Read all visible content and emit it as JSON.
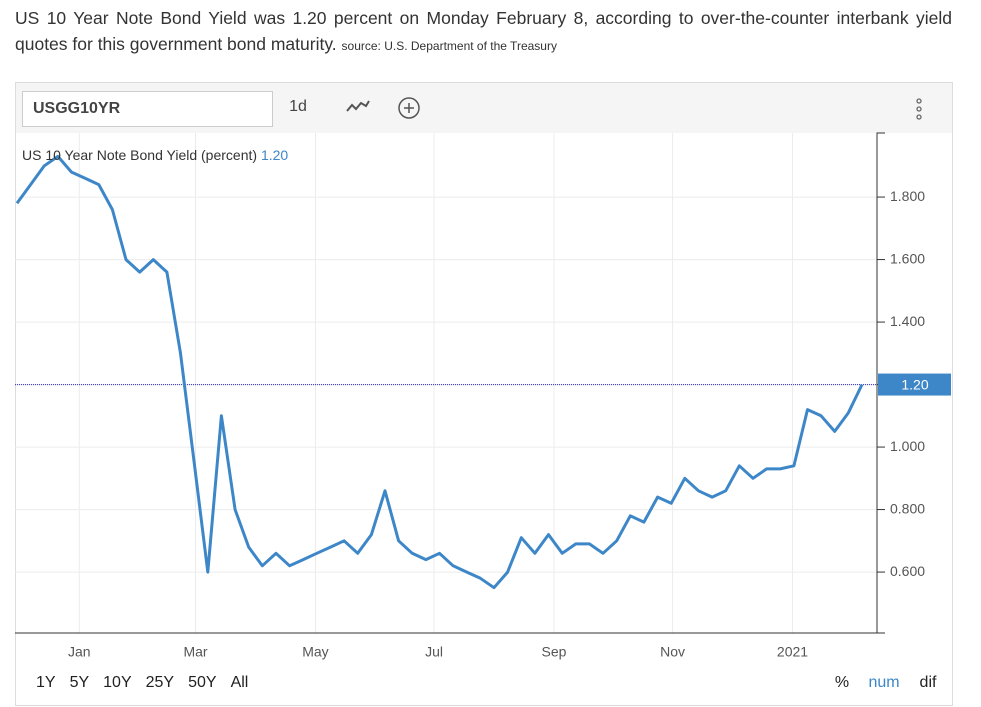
{
  "header": {
    "headline": "US 10 Year Note Bond Yield was 1.20 percent on Monday February 8, according to over-the-counter interbank yield quotes for this government bond maturity.",
    "source": "source: U.S. Department of the Treasury"
  },
  "toolbar": {
    "symbol": "USGG10YR",
    "interval": "1d"
  },
  "ranges": [
    "1Y",
    "5Y",
    "10Y",
    "25Y",
    "50Y",
    "All"
  ],
  "modes": [
    "%",
    "num",
    "dif"
  ],
  "chart_data": {
    "type": "line",
    "series": [
      {
        "name": "US 10 Year Note Bond Yield (percent)",
        "color": "#3d87c8",
        "values": [
          1.78,
          1.84,
          1.9,
          1.93,
          1.88,
          1.86,
          1.84,
          1.76,
          1.6,
          1.56,
          1.6,
          1.56,
          1.3,
          0.95,
          0.6,
          1.1,
          0.8,
          0.68,
          0.62,
          0.66,
          0.62,
          0.64,
          0.66,
          0.68,
          0.7,
          0.66,
          0.72,
          0.86,
          0.7,
          0.66,
          0.64,
          0.66,
          0.62,
          0.6,
          0.58,
          0.55,
          0.6,
          0.71,
          0.66,
          0.72,
          0.66,
          0.69,
          0.69,
          0.66,
          0.7,
          0.78,
          0.76,
          0.84,
          0.82,
          0.9,
          0.86,
          0.84,
          0.86,
          0.94,
          0.9,
          0.93,
          0.93,
          0.94,
          1.12,
          1.1,
          1.05,
          1.11,
          1.2
        ]
      }
    ],
    "last": {
      "value": 1.2,
      "label": "1.20"
    },
    "xlim": [
      0,
      62
    ],
    "xticks": [
      {
        "value": 4.57,
        "label": "Jan"
      },
      {
        "value": 13.1,
        "label": "Mar"
      },
      {
        "value": 21.9,
        "label": "May"
      },
      {
        "value": 30.6,
        "label": "Jul"
      },
      {
        "value": 39.4,
        "label": "Sep"
      },
      {
        "value": 48.1,
        "label": "Nov"
      },
      {
        "value": 56.9,
        "label": "2021"
      }
    ],
    "ylim": [
      0.405,
      2.005
    ],
    "yticks": [
      {
        "value": 0.6,
        "label": "0.600"
      },
      {
        "value": 0.8,
        "label": "0.800"
      },
      {
        "value": 1.0,
        "label": "1.000"
      },
      {
        "value": 1.2,
        "label": "1.200"
      },
      {
        "value": 1.4,
        "label": "1.400"
      },
      {
        "value": 1.6,
        "label": "1.600"
      },
      {
        "value": 1.8,
        "label": "1.800"
      }
    ],
    "grid": true
  }
}
